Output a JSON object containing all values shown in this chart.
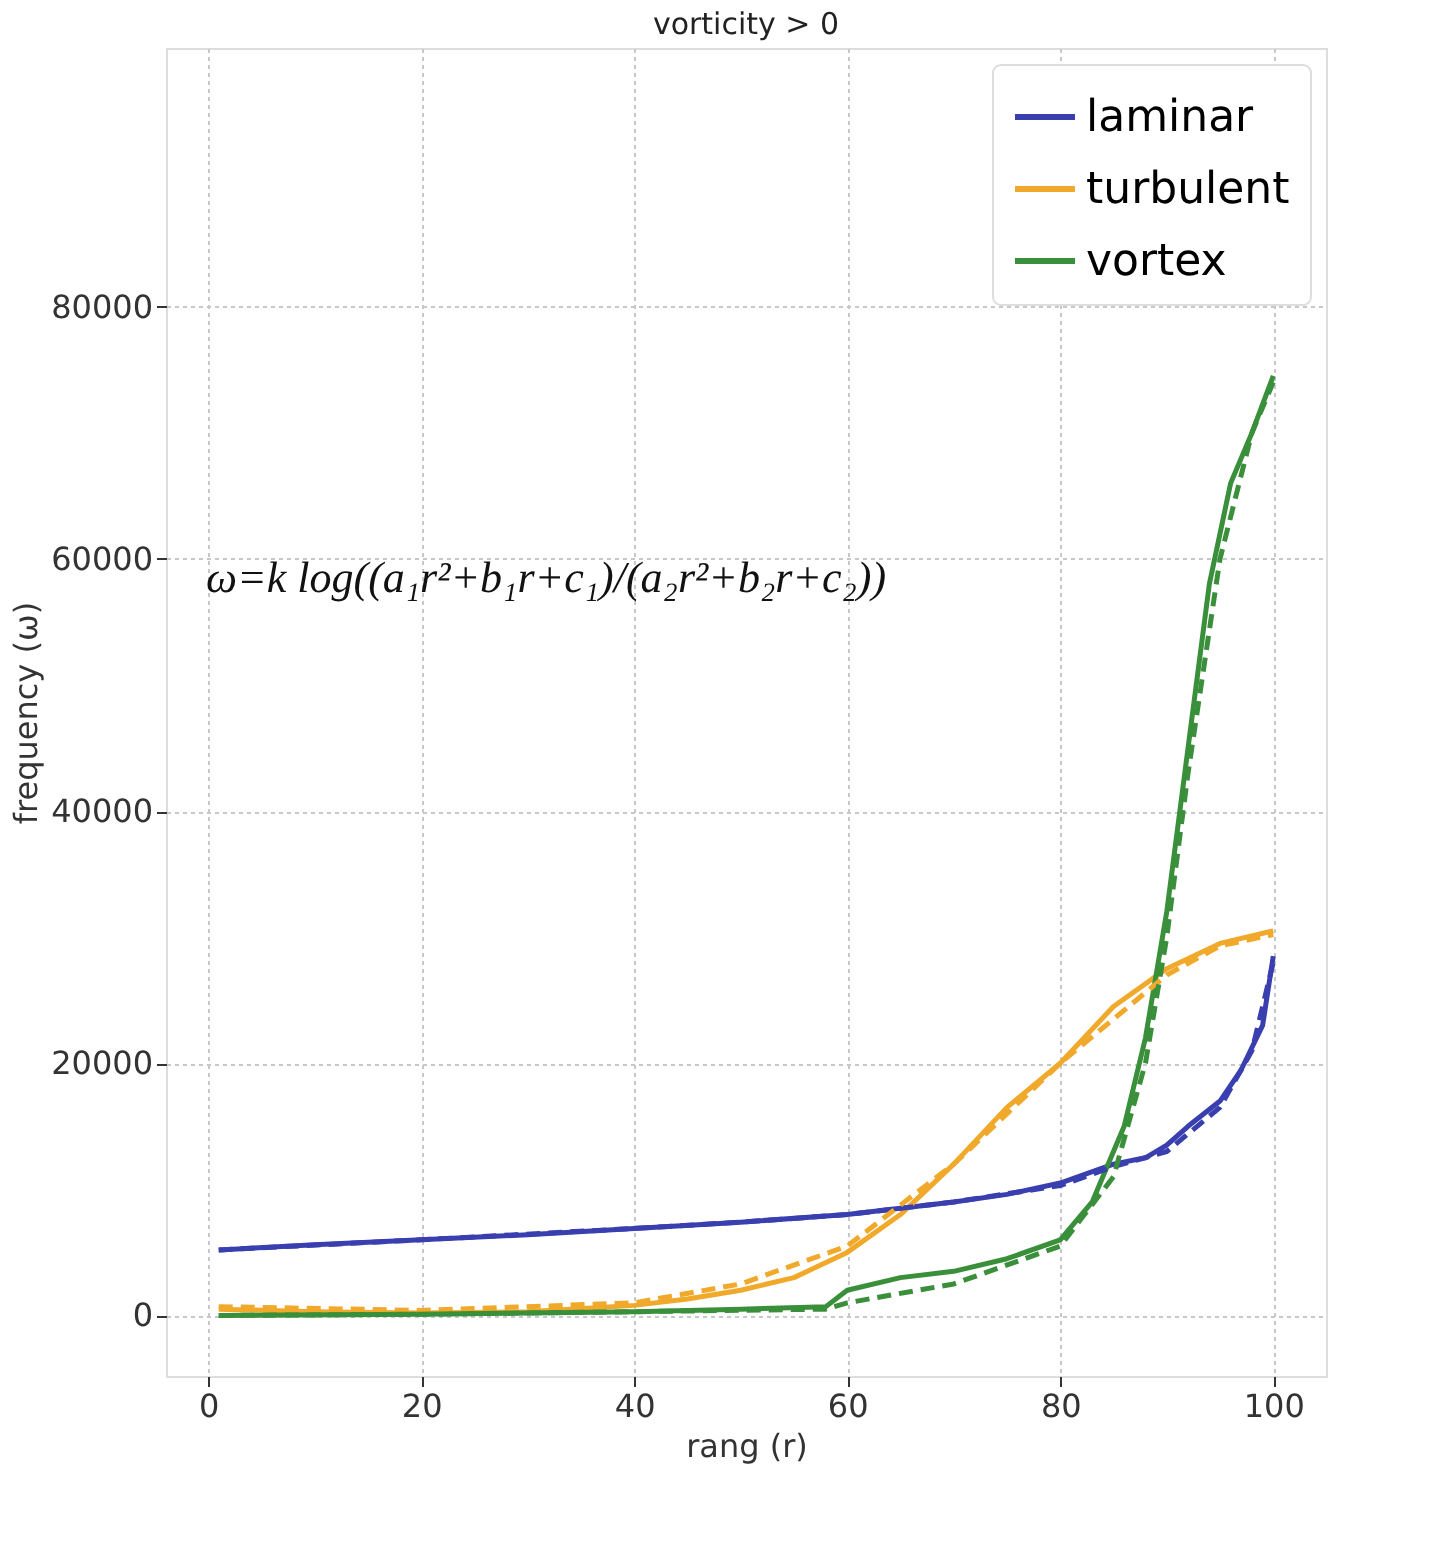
{
  "chart_data": {
    "type": "line",
    "title": "vorticity > 0",
    "xlabel": "rang (r)",
    "ylabel": "frequency (ω)",
    "xlim": [
      -3.95,
      104.95
    ],
    "ylim": [
      -4800,
      100500
    ],
    "xticks": [
      0,
      20,
      40,
      60,
      80,
      100
    ],
    "yticks": [
      0,
      20000,
      40000,
      60000,
      80000
    ],
    "grid": true,
    "legend": "top right",
    "marker": "none",
    "annotations": [
      "ω=k log((a₁r²+b₁r+c₁)/(a₂r²+b₂r+c₂))"
    ],
    "series": [
      {
        "name": "laminar",
        "color": "#3a3fb0",
        "line_style": "solid",
        "x": [
          1,
          10,
          20,
          30,
          40,
          50,
          60,
          65,
          70,
          75,
          80,
          85,
          88,
          90,
          92,
          95,
          97,
          99,
          100
        ],
        "values": [
          5200,
          5600,
          6000,
          6400,
          6900,
          7400,
          8000,
          8500,
          9000,
          9600,
          10500,
          12000,
          12500,
          13500,
          15000,
          17000,
          19500,
          23000,
          28500
        ]
      },
      {
        "name": "turbulent",
        "color": "#f0a92a",
        "line_style": "solid",
        "x": [
          1,
          10,
          20,
          30,
          40,
          45,
          50,
          55,
          60,
          65,
          70,
          75,
          80,
          85,
          90,
          95,
          100
        ],
        "values": [
          500,
          300,
          200,
          300,
          800,
          1300,
          2000,
          3000,
          5000,
          8000,
          12000,
          16500,
          20000,
          24500,
          27500,
          29500,
          30500
        ]
      },
      {
        "name": "vortex",
        "color": "#3a8f3a",
        "line_style": "solid",
        "x": [
          1,
          20,
          40,
          50,
          58,
          60,
          65,
          70,
          75,
          80,
          83,
          86,
          88,
          90,
          92,
          94,
          96,
          98,
          100
        ],
        "values": [
          0,
          100,
          300,
          500,
          700,
          2000,
          3000,
          3500,
          4500,
          6000,
          9000,
          15000,
          22000,
          32000,
          45000,
          58000,
          66000,
          70000,
          74500
        ]
      },
      {
        "color": "#3a3fb0",
        "line_style": "dashed",
        "x": [
          1,
          20,
          40,
          50,
          60,
          70,
          80,
          85,
          90,
          95,
          98,
          100
        ],
        "values": [
          5200,
          6000,
          6900,
          7400,
          8000,
          9000,
          10300,
          11800,
          13000,
          16500,
          21000,
          28000
        ]
      },
      {
        "color": "#f0a92a",
        "line_style": "dashed",
        "x": [
          1,
          20,
          40,
          50,
          60,
          70,
          80,
          90,
          95,
          100
        ],
        "values": [
          700,
          400,
          1000,
          2500,
          5500,
          12000,
          20000,
          27000,
          29300,
          30200
        ]
      },
      {
        "color": "#3a8f3a",
        "line_style": "dashed",
        "x": [
          1,
          20,
          40,
          58,
          60,
          70,
          80,
          85,
          88,
          90,
          92,
          95,
          98,
          100
        ],
        "values": [
          0,
          100,
          300,
          500,
          1000,
          2500,
          5500,
          11000,
          20000,
          30000,
          43000,
          60000,
          70000,
          74000
        ]
      }
    ]
  }
}
